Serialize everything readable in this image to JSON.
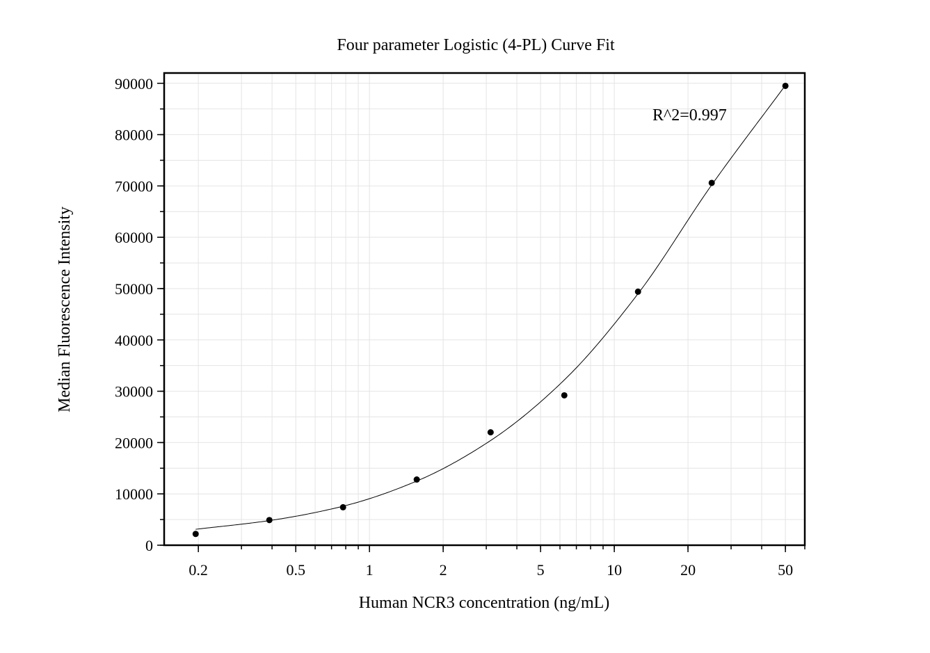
{
  "chart_data": {
    "type": "scatter",
    "title": "Four parameter Logistic (4-PL) Curve Fit",
    "xlabel": "Human NCR3 concentration (ng/mL)",
    "ylabel": "Median Fluorescence Intensity",
    "x_scale": "log",
    "xlim": [
      0.145,
      60
    ],
    "ylim": [
      0,
      92000
    ],
    "x_ticks": [
      0.2,
      0.5,
      1,
      2,
      5,
      10,
      20,
      50
    ],
    "x_tick_labels": [
      "0.2",
      "0.5",
      "1",
      "2",
      "5",
      "10",
      "20",
      "50"
    ],
    "y_ticks": [
      0,
      10000,
      20000,
      30000,
      40000,
      50000,
      60000,
      70000,
      80000,
      90000
    ],
    "y_tick_labels": [
      "0",
      "10000",
      "20000",
      "30000",
      "40000",
      "50000",
      "60000",
      "70000",
      "80000",
      "90000"
    ],
    "grid": true,
    "annotation": "R^2=0.997",
    "series": [
      {
        "kind": "points",
        "x": [
          0.195,
          0.39,
          0.78,
          1.56,
          3.125,
          6.25,
          12.5,
          25,
          50
        ],
        "y": [
          2200,
          4900,
          7400,
          12800,
          22000,
          29200,
          49400,
          70600,
          89500
        ]
      },
      {
        "kind": "fit",
        "x": [
          0.195,
          0.39,
          0.78,
          1.56,
          3.125,
          6.25,
          12.5,
          25,
          50
        ],
        "y": [
          3100,
          4800,
          7600,
          12500,
          20400,
          32200,
          49000,
          70200,
          89600
        ]
      }
    ]
  }
}
